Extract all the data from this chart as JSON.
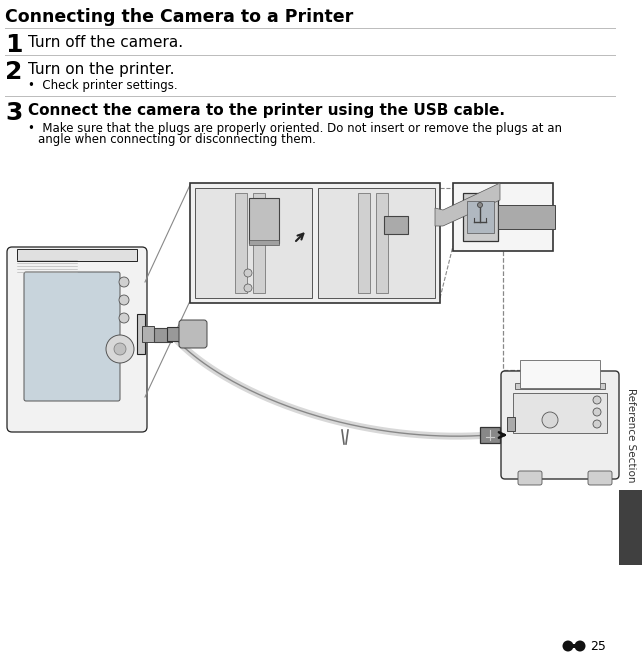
{
  "title": "Connecting the Camera to a Printer",
  "bg": "#ffffff",
  "step1_num": "1",
  "step1_txt": "Turn off the camera.",
  "step2_num": "2",
  "step2_txt": "Turn on the printer.",
  "step2_bullet": "Check printer settings.",
  "step3_num": "3",
  "step3_txt": "Connect the camera to the printer using the USB cable.",
  "step3_bullet1": "Make sure that the plugs are properly oriented. Do not insert or remove the plugs at an",
  "step3_bullet2": "angle when connecting or disconnecting them.",
  "sidebar_txt": "Reference Section",
  "page_num": "25",
  "dark_tab_color": "#404040",
  "rule_color": "#bbbbbb",
  "text_color": "#000000",
  "gray_line": "#888888",
  "light_gray": "#e8e8e8",
  "mid_gray": "#aaaaaa",
  "title_fs": 12.5,
  "num_fs": 18,
  "step_fs": 11,
  "bullet_fs": 8.5,
  "sidebar_fs": 7.5,
  "page_fs": 9
}
